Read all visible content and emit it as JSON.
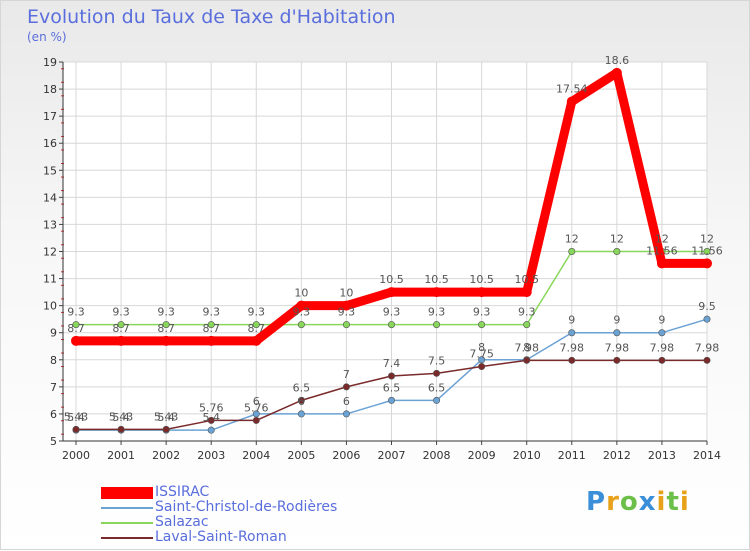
{
  "chart_data": {
    "type": "line",
    "title": "Evolution du Taux de Taxe d'Habitation",
    "ylabel": "(en %)",
    "xlabel": "",
    "categories": [
      "2000",
      "2001",
      "2002",
      "2003",
      "2004",
      "2005",
      "2006",
      "2007",
      "2008",
      "2009",
      "2010",
      "2011",
      "2012",
      "2013",
      "2014"
    ],
    "ylim": [
      5,
      19
    ],
    "yticks": [
      "5",
      "6",
      "7",
      "8",
      "9",
      "10",
      "11",
      "12",
      "13",
      "14",
      "15",
      "16",
      "17",
      "18",
      "19"
    ],
    "legend_position": "bottom-left",
    "series": [
      {
        "name": "ISSIRAC",
        "color": "#ff0000",
        "values": [
          8.7,
          8.7,
          8.7,
          8.7,
          8.7,
          10,
          10,
          10.5,
          10.5,
          10.5,
          10.5,
          17.54,
          18.6,
          11.56,
          11.56
        ],
        "labels": [
          "8.7",
          "8.7",
          "8.7",
          "8.7",
          "8.7",
          "10",
          "10",
          "10.5",
          "10.5",
          "10.5",
          "10.5",
          "17.54",
          "18.6",
          "11.56",
          "11.56"
        ]
      },
      {
        "name": "Saint-Christol-de-Rodières",
        "color": "#6aa2d4",
        "values": [
          5.4,
          5.4,
          5.4,
          5.4,
          6,
          6,
          6,
          6.5,
          6.5,
          8,
          8,
          9,
          9,
          9,
          9.5
        ],
        "labels": [
          "5.4",
          "5.4",
          "5.4",
          "5.4",
          "6",
          "6",
          "6",
          "6.5",
          "6.5",
          "8",
          "8",
          "9",
          "9",
          "9",
          "9.5"
        ]
      },
      {
        "name": "Salazac",
        "color": "#88d75a",
        "values": [
          9.3,
          9.3,
          9.3,
          9.3,
          9.3,
          9.3,
          9.3,
          9.3,
          9.3,
          9.3,
          9.3,
          12,
          12,
          12,
          12
        ],
        "labels": [
          "9.3",
          "9.3",
          "9.3",
          "9.3",
          "9.3",
          "9.3",
          "9.3",
          "9.3",
          "9.3",
          "9.3",
          "9.3",
          "12",
          "12",
          "12",
          "12"
        ]
      },
      {
        "name": "Laval-Saint-Roman",
        "color": "#7a2a2a",
        "values": [
          5.43,
          5.43,
          5.43,
          5.76,
          5.76,
          6.5,
          7,
          7.4,
          7.5,
          7.75,
          7.98,
          7.98,
          7.98,
          7.98,
          7.98
        ],
        "labels": [
          "5.43",
          "5.43",
          "5.43",
          "5.76",
          "5.76",
          "6.5",
          "7",
          "7.4",
          "7.5",
          "7.75",
          "7.98",
          "7.98",
          "7.98",
          "7.98",
          "7.98"
        ]
      }
    ]
  },
  "brand": {
    "letters": [
      "P",
      "r",
      "o",
      "x",
      "i",
      "t",
      "i"
    ],
    "colors": [
      "#3b8fd8",
      "#e8a21a",
      "#6cc04a",
      "#3b8fd8",
      "#e8a21a",
      "#6cc04a",
      "#e8a21a"
    ]
  }
}
